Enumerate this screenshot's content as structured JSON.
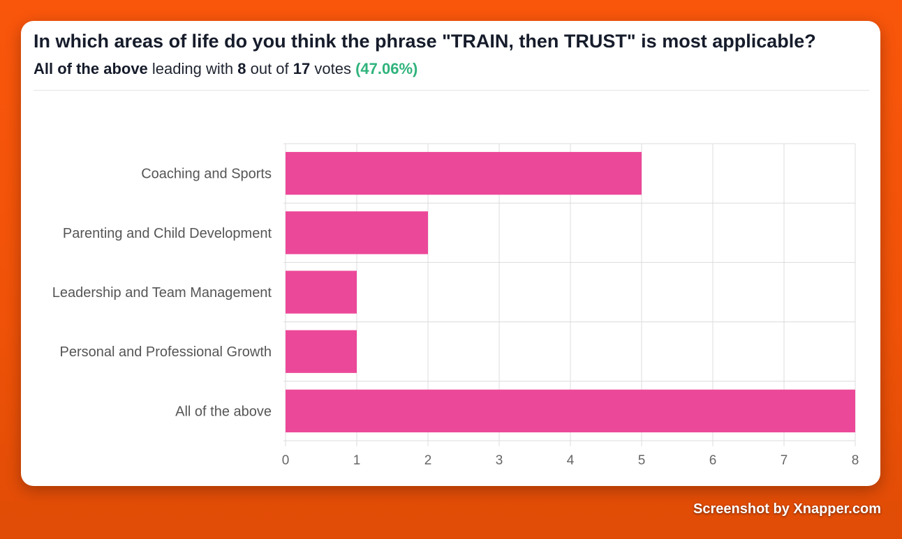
{
  "poll": {
    "question": "In which areas of life do you think the phrase \"TRAIN, then TRUST\" is most applicable?",
    "leader": "All of the above",
    "leading_with_text": "leading with",
    "leader_votes": "8",
    "out_of_text": "out of",
    "total_votes": "17",
    "votes_text": "votes",
    "leader_percent": "(47.06%)"
  },
  "colors": {
    "bar": "#ec4899",
    "grid": "#dcdcdc",
    "accent_green": "#2fb37c",
    "background": "#f9560b"
  },
  "chart_data": {
    "type": "bar",
    "orientation": "horizontal",
    "categories": [
      "Coaching and Sports",
      "Parenting and Child Development",
      "Leadership and Team Management",
      "Personal and Professional Growth",
      "All of the above"
    ],
    "values": [
      5,
      2,
      1,
      1,
      8
    ],
    "xlim": [
      0,
      8
    ],
    "xticks": [
      0,
      1,
      2,
      3,
      4,
      5,
      6,
      7,
      8
    ],
    "grid": true,
    "title": "",
    "xlabel": "",
    "ylabel": ""
  },
  "credit": "Screenshot by Xnapper.com"
}
